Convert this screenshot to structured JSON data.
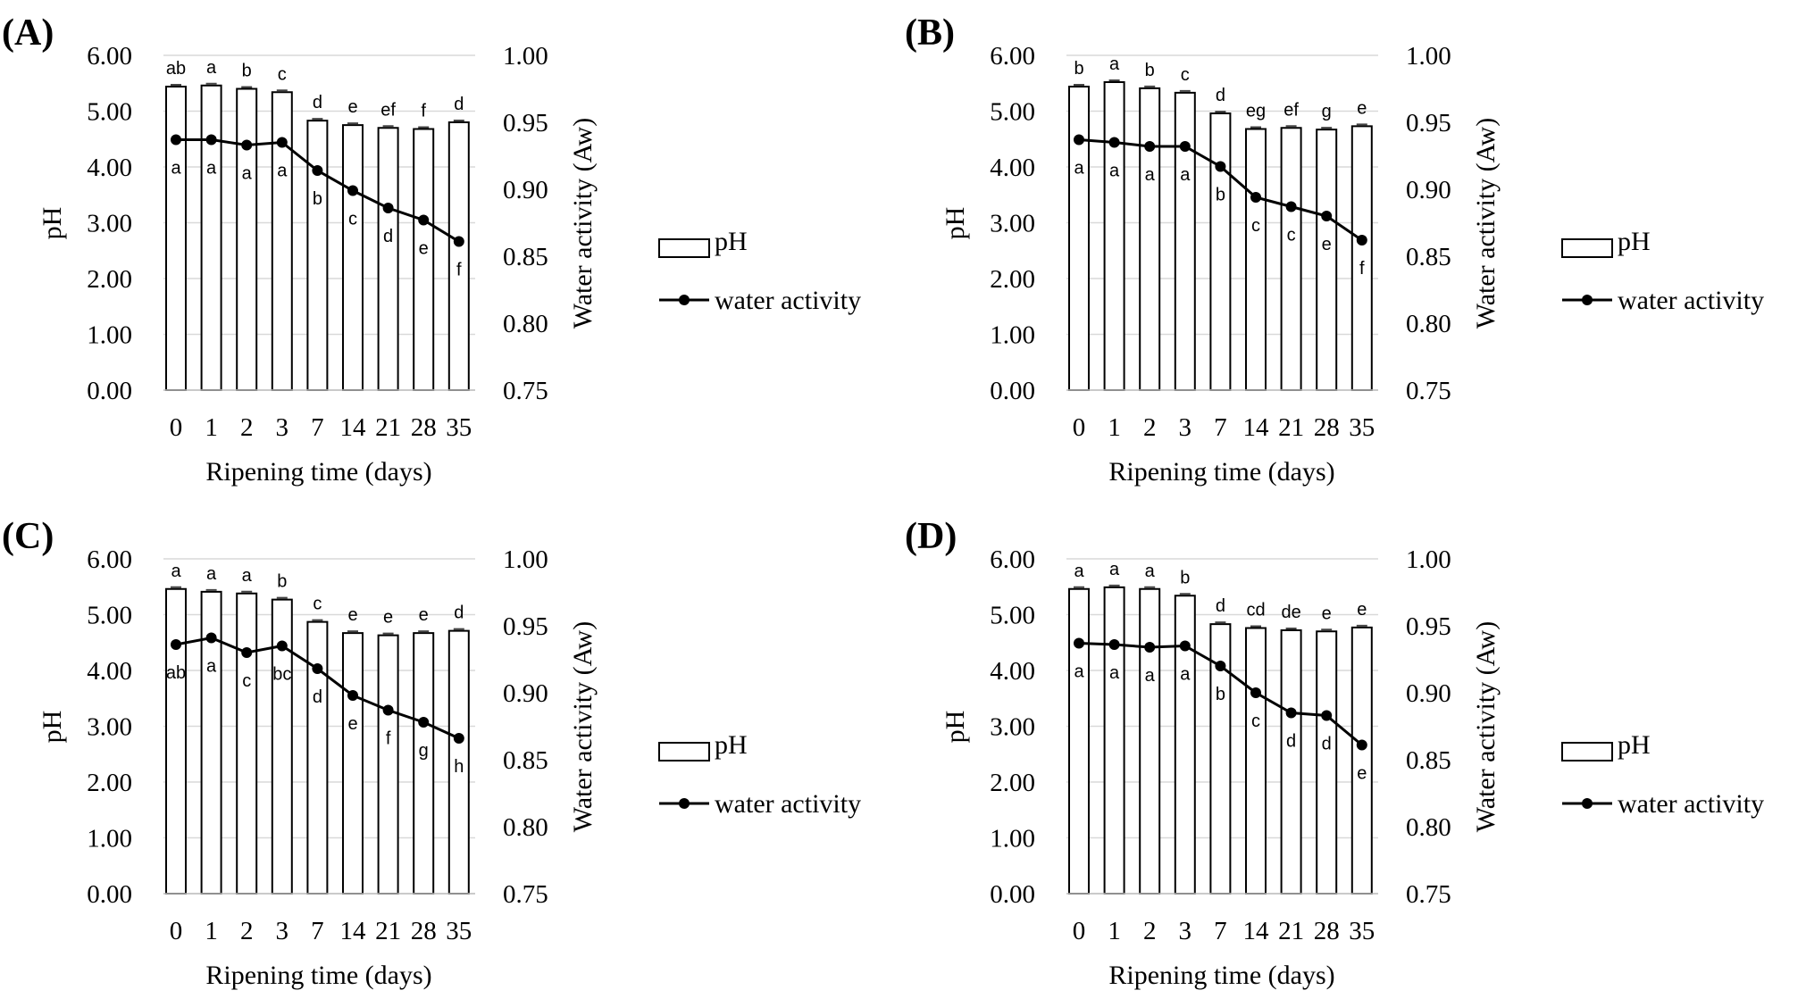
{
  "figure": {
    "legend_ph": "pH",
    "legend_aw": "water activity"
  },
  "chart_data": [
    {
      "type": "bar+line",
      "panel_label": "(A)",
      "xlabel": "Ripening time (days)",
      "ylabel_left": "pH",
      "ylabel_right": "Water activity (Aw)",
      "categories": [
        "0",
        "1",
        "2",
        "3",
        "7",
        "14",
        "21",
        "28",
        "35"
      ],
      "ylim_left": [
        0,
        6
      ],
      "ylim_right": [
        0.75,
        1.0
      ],
      "yticks_left": [
        "0.00",
        "1.00",
        "2.00",
        "3.00",
        "4.00",
        "5.00",
        "6.00"
      ],
      "yticks_right": [
        "0.75",
        "0.80",
        "0.85",
        "0.90",
        "0.95",
        "1.00"
      ],
      "series": [
        {
          "name": "pH",
          "kind": "bar",
          "values": [
            5.44,
            5.46,
            5.4,
            5.34,
            4.83,
            4.75,
            4.7,
            4.68,
            4.8
          ],
          "letters": [
            "ab",
            "a",
            "b",
            "c",
            "d",
            "e",
            "ef",
            "f",
            "d"
          ]
        },
        {
          "name": "water activity",
          "kind": "line",
          "values": [
            0.937,
            0.937,
            0.933,
            0.935,
            0.914,
            0.899,
            0.886,
            0.877,
            0.861
          ],
          "letters": [
            "a",
            "a",
            "a",
            "a",
            "b",
            "c",
            "d",
            "e",
            "f"
          ]
        }
      ]
    },
    {
      "type": "bar+line",
      "panel_label": "(B)",
      "xlabel": "Ripening time (days)",
      "ylabel_left": "pH",
      "ylabel_right": "Water activity (Aw)",
      "categories": [
        "0",
        "1",
        "2",
        "3",
        "7",
        "14",
        "21",
        "28",
        "35"
      ],
      "ylim_left": [
        0,
        6
      ],
      "ylim_right": [
        0.75,
        1.0
      ],
      "yticks_left": [
        "0.00",
        "1.00",
        "2.00",
        "3.00",
        "4.00",
        "5.00",
        "6.00"
      ],
      "yticks_right": [
        "0.75",
        "0.80",
        "0.85",
        "0.90",
        "0.95",
        "1.00"
      ],
      "series": [
        {
          "name": "pH",
          "kind": "bar",
          "values": [
            5.44,
            5.52,
            5.41,
            5.33,
            4.96,
            4.68,
            4.7,
            4.67,
            4.73
          ],
          "letters": [
            "b",
            "a",
            "b",
            "c",
            "d",
            "eg",
            "ef",
            "g",
            "e"
          ]
        },
        {
          "name": "water activity",
          "kind": "line",
          "values": [
            0.937,
            0.935,
            0.932,
            0.932,
            0.917,
            0.894,
            0.887,
            0.88,
            0.862
          ],
          "letters": [
            "a",
            "a",
            "a",
            "a",
            "b",
            "c",
            "c",
            "e",
            "f"
          ]
        }
      ]
    },
    {
      "type": "bar+line",
      "panel_label": "(C)",
      "xlabel": "Ripening time (days)",
      "ylabel_left": "pH",
      "ylabel_right": "Water activity (Aw)",
      "categories": [
        "0",
        "1",
        "2",
        "3",
        "7",
        "14",
        "21",
        "28",
        "35"
      ],
      "ylim_left": [
        0,
        6
      ],
      "ylim_right": [
        0.75,
        1.0
      ],
      "yticks_left": [
        "0.00",
        "1.00",
        "2.00",
        "3.00",
        "4.00",
        "5.00",
        "6.00"
      ],
      "yticks_right": [
        "0.75",
        "0.80",
        "0.85",
        "0.90",
        "0.95",
        "1.00"
      ],
      "series": [
        {
          "name": "pH",
          "kind": "bar",
          "values": [
            5.46,
            5.41,
            5.38,
            5.27,
            4.87,
            4.67,
            4.63,
            4.67,
            4.71
          ],
          "letters": [
            "a",
            "a",
            "a",
            "b",
            "c",
            "e",
            "e",
            "e",
            "d"
          ]
        },
        {
          "name": "water activity",
          "kind": "line",
          "values": [
            0.936,
            0.941,
            0.93,
            0.935,
            0.918,
            0.898,
            0.887,
            0.878,
            0.866
          ],
          "letters": [
            "ab",
            "a",
            "c",
            "bc",
            "d",
            "e",
            "f",
            "g",
            "h"
          ]
        }
      ]
    },
    {
      "type": "bar+line",
      "panel_label": "(D)",
      "xlabel": "Ripening time (days)",
      "ylabel_left": "pH",
      "ylabel_right": "Water activity (Aw)",
      "categories": [
        "0",
        "1",
        "2",
        "3",
        "7",
        "14",
        "21",
        "28",
        "35"
      ],
      "ylim_left": [
        0,
        6
      ],
      "ylim_right": [
        0.75,
        1.0
      ],
      "yticks_left": [
        "0.00",
        "1.00",
        "2.00",
        "3.00",
        "4.00",
        "5.00",
        "6.00"
      ],
      "yticks_right": [
        "0.75",
        "0.80",
        "0.85",
        "0.90",
        "0.95",
        "1.00"
      ],
      "series": [
        {
          "name": "pH",
          "kind": "bar",
          "values": [
            5.46,
            5.49,
            5.46,
            5.34,
            4.83,
            4.76,
            4.72,
            4.7,
            4.77
          ],
          "letters": [
            "a",
            "a",
            "a",
            "b",
            "d",
            "cd",
            "de",
            "e",
            "e"
          ]
        },
        {
          "name": "water activity",
          "kind": "line",
          "values": [
            0.937,
            0.936,
            0.934,
            0.935,
            0.92,
            0.9,
            0.885,
            0.883,
            0.861
          ],
          "letters": [
            "a",
            "a",
            "a",
            "a",
            "b",
            "c",
            "d",
            "d",
            "e"
          ]
        }
      ]
    }
  ]
}
